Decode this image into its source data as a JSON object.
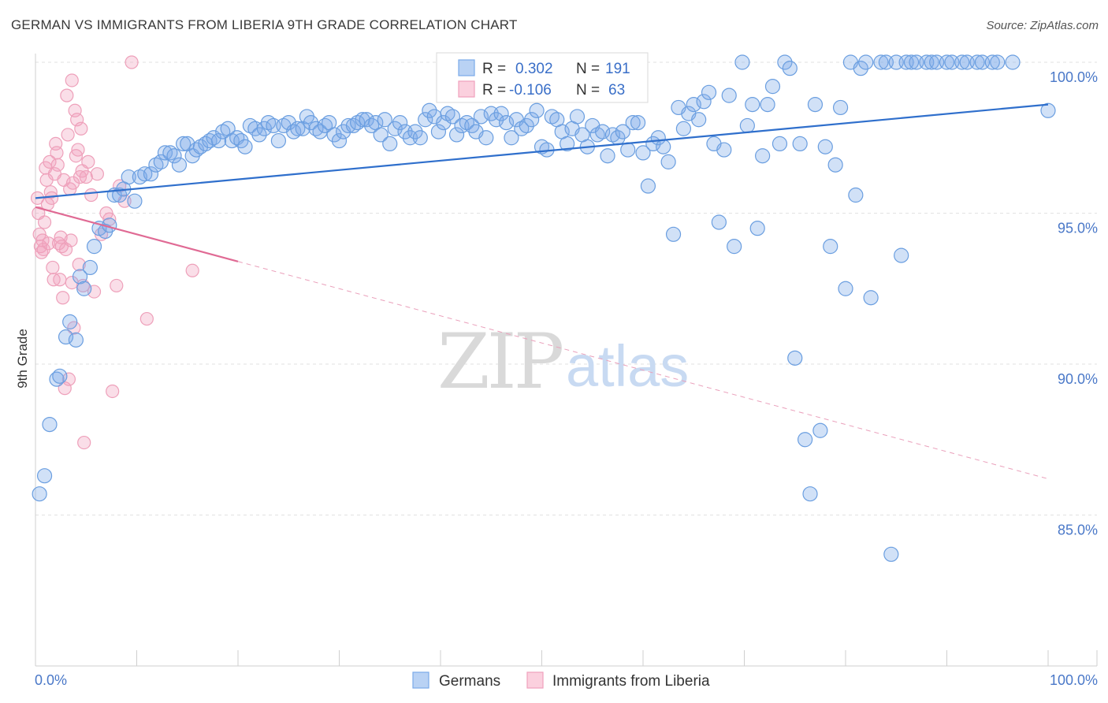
{
  "title": "GERMAN VS IMMIGRANTS FROM LIBERIA 9TH GRADE CORRELATION CHART",
  "source": "Source: ZipAtlas.com",
  "watermark": {
    "zip": "ZIP",
    "atlas": "atlas"
  },
  "colors": {
    "german": "#7aaae8",
    "german_line": "#2f6fcc",
    "liberia": "#f0a0bc",
    "liberia_line": "#e06a94",
    "tick_text": "#4a78c8"
  },
  "legend": {
    "rows": [
      {
        "r_label": "R =",
        "r_value": "0.302",
        "n_label": "N =",
        "n_value": "191"
      },
      {
        "r_label": "R =",
        "r_value": "-0.106",
        "n_label": "N =",
        "n_value": "63"
      }
    ]
  },
  "bottom_legend": [
    "Germans",
    "Immigrants from Liberia"
  ],
  "chart_data": {
    "type": "scatter",
    "xlabel": "",
    "ylabel": "9th Grade",
    "x_ticks": [
      "0.0%",
      "100.0%"
    ],
    "y_ticks": [
      "100.0%",
      "95.0%",
      "90.0%",
      "85.0%"
    ],
    "y_tick_values": [
      100,
      95,
      90,
      85
    ],
    "xlim": [
      0,
      100
    ],
    "ylim": [
      80.5,
      101.5
    ],
    "grid": true,
    "legend_placement": "top-center",
    "series": [
      {
        "name": "Germans",
        "r": 0.302,
        "n": 191,
        "trend": {
          "x": [
            0,
            100
          ],
          "y": [
            95.5,
            98.6
          ],
          "dashed_to": null
        },
        "points": [
          [
            0.4,
            85.7
          ],
          [
            0.9,
            86.3
          ],
          [
            1.4,
            88.0
          ],
          [
            2.1,
            89.5
          ],
          [
            2.4,
            89.6
          ],
          [
            3.0,
            90.9
          ],
          [
            3.4,
            91.4
          ],
          [
            4.0,
            90.8
          ],
          [
            4.4,
            92.9
          ],
          [
            4.8,
            92.5
          ],
          [
            5.4,
            93.2
          ],
          [
            5.8,
            93.9
          ],
          [
            6.3,
            94.5
          ],
          [
            6.9,
            94.4
          ],
          [
            7.3,
            94.6
          ],
          [
            7.8,
            95.6
          ],
          [
            8.3,
            95.6
          ],
          [
            8.7,
            95.8
          ],
          [
            9.2,
            96.2
          ],
          [
            9.8,
            95.4
          ],
          [
            10.3,
            96.2
          ],
          [
            10.8,
            96.3
          ],
          [
            11.4,
            96.3
          ],
          [
            11.9,
            96.6
          ],
          [
            12.4,
            96.7
          ],
          [
            12.8,
            97.0
          ],
          [
            13.3,
            97.0
          ],
          [
            13.7,
            96.9
          ],
          [
            14.2,
            96.6
          ],
          [
            14.6,
            97.3
          ],
          [
            15.0,
            97.3
          ],
          [
            15.5,
            96.9
          ],
          [
            15.9,
            97.1
          ],
          [
            16.3,
            97.2
          ],
          [
            16.8,
            97.3
          ],
          [
            17.2,
            97.4
          ],
          [
            17.6,
            97.5
          ],
          [
            18.1,
            97.4
          ],
          [
            18.5,
            97.7
          ],
          [
            19.0,
            97.8
          ],
          [
            19.4,
            97.4
          ],
          [
            19.9,
            97.5
          ],
          [
            20.3,
            97.4
          ],
          [
            20.7,
            97.2
          ],
          [
            21.2,
            97.9
          ],
          [
            21.7,
            97.8
          ],
          [
            22.1,
            97.6
          ],
          [
            22.6,
            97.8
          ],
          [
            23.0,
            98.0
          ],
          [
            23.5,
            97.9
          ],
          [
            24.0,
            97.4
          ],
          [
            24.5,
            97.9
          ],
          [
            25.0,
            98.0
          ],
          [
            25.5,
            97.7
          ],
          [
            25.9,
            97.8
          ],
          [
            26.4,
            97.8
          ],
          [
            26.8,
            98.2
          ],
          [
            27.2,
            98.0
          ],
          [
            27.7,
            97.8
          ],
          [
            28.1,
            97.7
          ],
          [
            28.6,
            97.9
          ],
          [
            29.0,
            98.0
          ],
          [
            29.5,
            97.6
          ],
          [
            30.0,
            97.4
          ],
          [
            30.4,
            97.7
          ],
          [
            30.9,
            97.9
          ],
          [
            31.4,
            97.9
          ],
          [
            31.8,
            98.0
          ],
          [
            32.3,
            98.1
          ],
          [
            32.7,
            98.1
          ],
          [
            33.2,
            97.9
          ],
          [
            33.6,
            98.0
          ],
          [
            34.1,
            97.6
          ],
          [
            34.5,
            98.1
          ],
          [
            35.0,
            97.3
          ],
          [
            35.5,
            97.8
          ],
          [
            36.0,
            98.0
          ],
          [
            36.5,
            97.7
          ],
          [
            37.0,
            97.5
          ],
          [
            37.5,
            97.7
          ],
          [
            38.0,
            97.5
          ],
          [
            38.5,
            98.1
          ],
          [
            38.9,
            98.4
          ],
          [
            39.4,
            98.2
          ],
          [
            39.8,
            97.7
          ],
          [
            40.3,
            98.0
          ],
          [
            40.7,
            98.3
          ],
          [
            41.2,
            98.2
          ],
          [
            41.6,
            97.6
          ],
          [
            42.1,
            97.9
          ],
          [
            42.6,
            98.0
          ],
          [
            43.1,
            97.9
          ],
          [
            43.5,
            97.7
          ],
          [
            44.0,
            98.2
          ],
          [
            44.5,
            97.5
          ],
          [
            45.0,
            98.3
          ],
          [
            45.5,
            98.1
          ],
          [
            46.0,
            98.3
          ],
          [
            46.5,
            98.0
          ],
          [
            47.0,
            97.5
          ],
          [
            47.5,
            98.1
          ],
          [
            48.0,
            97.8
          ],
          [
            48.5,
            97.9
          ],
          [
            49.0,
            98.1
          ],
          [
            49.5,
            98.4
          ],
          [
            50.0,
            97.2
          ],
          [
            50.5,
            97.1
          ],
          [
            51.0,
            98.2
          ],
          [
            51.5,
            98.1
          ],
          [
            52.0,
            97.7
          ],
          [
            52.5,
            97.3
          ],
          [
            53.0,
            97.8
          ],
          [
            53.5,
            98.2
          ],
          [
            54.0,
            97.6
          ],
          [
            54.5,
            97.2
          ],
          [
            55.0,
            97.9
          ],
          [
            55.5,
            97.6
          ],
          [
            56.0,
            97.7
          ],
          [
            56.5,
            96.9
          ],
          [
            57.0,
            97.6
          ],
          [
            57.5,
            97.5
          ],
          [
            58.0,
            97.7
          ],
          [
            58.5,
            97.1
          ],
          [
            59.0,
            98.0
          ],
          [
            59.5,
            98.0
          ],
          [
            60.0,
            97.0
          ],
          [
            60.5,
            95.9
          ],
          [
            61.0,
            97.3
          ],
          [
            61.5,
            97.5
          ],
          [
            62.0,
            97.2
          ],
          [
            62.5,
            96.7
          ],
          [
            63.0,
            94.3
          ],
          [
            63.5,
            98.5
          ],
          [
            64.0,
            97.8
          ],
          [
            64.5,
            98.3
          ],
          [
            65.0,
            98.6
          ],
          [
            65.5,
            98.1
          ],
          [
            66.0,
            98.7
          ],
          [
            66.5,
            99.0
          ],
          [
            67.0,
            97.3
          ],
          [
            67.5,
            94.7
          ],
          [
            68.0,
            97.1
          ],
          [
            68.5,
            98.9
          ],
          [
            69.0,
            93.9
          ],
          [
            69.8,
            100.0
          ],
          [
            70.3,
            97.9
          ],
          [
            70.8,
            98.6
          ],
          [
            71.3,
            94.5
          ],
          [
            71.8,
            96.9
          ],
          [
            72.3,
            98.6
          ],
          [
            72.8,
            99.2
          ],
          [
            73.5,
            97.3
          ],
          [
            74.0,
            100.0
          ],
          [
            74.5,
            99.8
          ],
          [
            75.0,
            90.2
          ],
          [
            75.5,
            97.3
          ],
          [
            76.0,
            87.5
          ],
          [
            76.5,
            85.7
          ],
          [
            77.0,
            98.6
          ],
          [
            77.5,
            87.8
          ],
          [
            78.0,
            97.2
          ],
          [
            78.5,
            93.9
          ],
          [
            79.0,
            96.6
          ],
          [
            79.5,
            98.5
          ],
          [
            80.0,
            92.5
          ],
          [
            80.5,
            100.0
          ],
          [
            81.0,
            95.6
          ],
          [
            81.5,
            99.8
          ],
          [
            82.0,
            100.0
          ],
          [
            82.5,
            92.2
          ],
          [
            83.5,
            100.0
          ],
          [
            84.0,
            100.0
          ],
          [
            84.5,
            83.7
          ],
          [
            85.0,
            100.0
          ],
          [
            85.5,
            93.6
          ],
          [
            86.0,
            100.0
          ],
          [
            86.5,
            100.0
          ],
          [
            87.0,
            100.0
          ],
          [
            88.0,
            100.0
          ],
          [
            88.5,
            100.0
          ],
          [
            89.0,
            100.0
          ],
          [
            90.0,
            100.0
          ],
          [
            90.5,
            100.0
          ],
          [
            91.5,
            100.0
          ],
          [
            92.0,
            100.0
          ],
          [
            93.0,
            100.0
          ],
          [
            93.5,
            100.0
          ],
          [
            94.5,
            100.0
          ],
          [
            95.0,
            100.0
          ],
          [
            96.5,
            100.0
          ],
          [
            100.0,
            98.4
          ]
        ]
      },
      {
        "name": "Immigrants from Liberia",
        "r": -0.106,
        "n": 63,
        "trend": {
          "x": [
            0,
            20
          ],
          "y": [
            95.2,
            93.4
          ],
          "dashed_to": [
            100,
            86.2
          ]
        },
        "points": [
          [
            0.2,
            95.5
          ],
          [
            0.3,
            95.0
          ],
          [
            0.4,
            94.3
          ],
          [
            0.5,
            93.9
          ],
          [
            0.6,
            93.7
          ],
          [
            0.7,
            94.1
          ],
          [
            0.8,
            93.8
          ],
          [
            0.9,
            94.7
          ],
          [
            1.0,
            96.5
          ],
          [
            1.1,
            96.1
          ],
          [
            1.2,
            95.3
          ],
          [
            1.3,
            94.0
          ],
          [
            1.4,
            96.7
          ],
          [
            1.5,
            95.7
          ],
          [
            1.6,
            95.5
          ],
          [
            1.7,
            93.2
          ],
          [
            1.8,
            92.8
          ],
          [
            1.9,
            96.3
          ],
          [
            2.0,
            97.3
          ],
          [
            2.1,
            97.0
          ],
          [
            2.2,
            96.6
          ],
          [
            2.3,
            94.0
          ],
          [
            2.4,
            92.8
          ],
          [
            2.5,
            94.2
          ],
          [
            2.6,
            93.9
          ],
          [
            2.7,
            92.2
          ],
          [
            2.8,
            96.1
          ],
          [
            2.9,
            89.2
          ],
          [
            3.0,
            93.8
          ],
          [
            3.1,
            98.9
          ],
          [
            3.2,
            97.6
          ],
          [
            3.3,
            89.5
          ],
          [
            3.4,
            95.8
          ],
          [
            3.5,
            94.1
          ],
          [
            3.6,
            92.7
          ],
          [
            3.7,
            96.0
          ],
          [
            3.8,
            91.2
          ],
          [
            3.9,
            98.4
          ],
          [
            4.0,
            96.9
          ],
          [
            4.1,
            98.1
          ],
          [
            4.2,
            97.1
          ],
          [
            4.3,
            93.3
          ],
          [
            4.4,
            96.2
          ],
          [
            4.5,
            97.8
          ],
          [
            4.6,
            96.4
          ],
          [
            4.7,
            92.6
          ],
          [
            4.8,
            87.4
          ],
          [
            5.0,
            96.2
          ],
          [
            5.2,
            96.7
          ],
          [
            5.5,
            95.6
          ],
          [
            5.8,
            92.4
          ],
          [
            6.1,
            96.3
          ],
          [
            6.5,
            94.3
          ],
          [
            7.0,
            95.0
          ],
          [
            7.3,
            94.8
          ],
          [
            7.6,
            89.1
          ],
          [
            8.0,
            92.6
          ],
          [
            8.3,
            95.9
          ],
          [
            8.8,
            95.4
          ],
          [
            9.5,
            100.0
          ],
          [
            11.0,
            91.5
          ],
          [
            15.5,
            93.1
          ],
          [
            3.6,
            99.4
          ]
        ]
      }
    ]
  }
}
